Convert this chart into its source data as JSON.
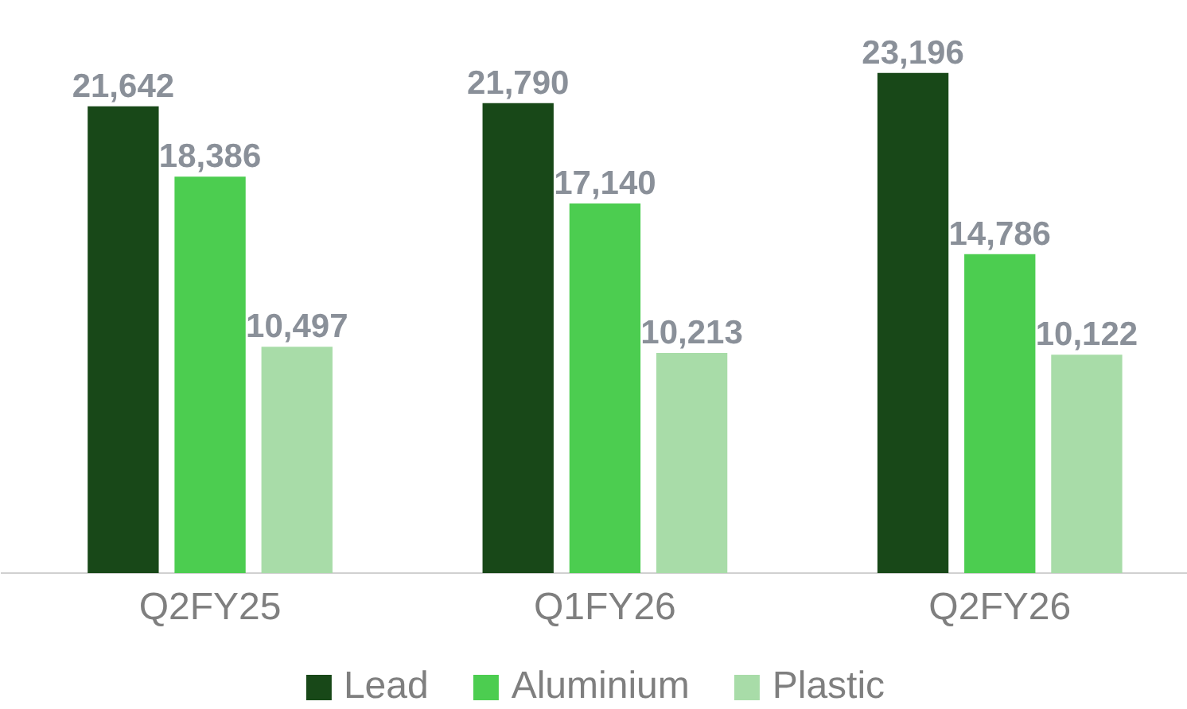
{
  "chart_data": {
    "type": "bar",
    "categories": [
      "Q2FY25",
      "Q1FY26",
      "Q2FY26"
    ],
    "series": [
      {
        "name": "Lead",
        "color": "#184818",
        "values": [
          21642,
          21790,
          23196
        ],
        "value_labels": [
          "21,642",
          "21,790",
          "23,196"
        ]
      },
      {
        "name": "Aluminium",
        "color": "#4ccd50",
        "values": [
          18386,
          17140,
          14786
        ],
        "value_labels": [
          "18,386",
          "17,140",
          "14,786"
        ]
      },
      {
        "name": "Plastic",
        "color": "#a8dca8",
        "values": [
          10497,
          10213,
          10122
        ],
        "value_labels": [
          "10,497",
          "10,213",
          "10,122"
        ]
      }
    ],
    "legend": "bottom"
  }
}
